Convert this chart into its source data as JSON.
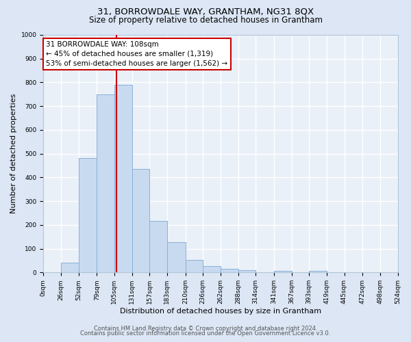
{
  "title": "31, BORROWDALE WAY, GRANTHAM, NG31 8QX",
  "subtitle": "Size of property relative to detached houses in Grantham",
  "xlabel": "Distribution of detached houses by size in Grantham",
  "ylabel": "Number of detached properties",
  "bar_edges": [
    0,
    26,
    52,
    79,
    105,
    131,
    157,
    183,
    210,
    236,
    262,
    288,
    314,
    341,
    367,
    393,
    419,
    445,
    472,
    498,
    524
  ],
  "bar_heights": [
    0,
    42,
    483,
    750,
    790,
    435,
    217,
    127,
    52,
    27,
    15,
    10,
    0,
    7,
    0,
    6,
    0,
    0,
    0,
    0
  ],
  "bar_color": "#c8daf0",
  "bar_edge_color": "#8ab0d8",
  "vline_x": 108,
  "vline_color": "#cc0000",
  "annotation_text": "31 BORROWDALE WAY: 108sqm\n← 45% of detached houses are smaller (1,319)\n53% of semi-detached houses are larger (1,562) →",
  "annotation_box_color": "#ffffff",
  "annotation_box_edge_color": "#cc0000",
  "ylim": [
    0,
    1000
  ],
  "yticks": [
    0,
    100,
    200,
    300,
    400,
    500,
    600,
    700,
    800,
    900,
    1000
  ],
  "tick_labels": [
    "0sqm",
    "26sqm",
    "52sqm",
    "79sqm",
    "105sqm",
    "131sqm",
    "157sqm",
    "183sqm",
    "210sqm",
    "236sqm",
    "262sqm",
    "288sqm",
    "314sqm",
    "341sqm",
    "367sqm",
    "393sqm",
    "419sqm",
    "445sqm",
    "472sqm",
    "498sqm",
    "524sqm"
  ],
  "footer1": "Contains HM Land Registry data © Crown copyright and database right 2024.",
  "footer2": "Contains public sector information licensed under the Open Government Licence v3.0.",
  "bg_color": "#dce6f5",
  "plot_bg_color": "#eaf0f8",
  "grid_color": "#ffffff",
  "title_fontsize": 9.5,
  "subtitle_fontsize": 8.5,
  "label_fontsize": 8,
  "tick_fontsize": 6.5,
  "footer_fontsize": 6,
  "annot_fontsize": 7.5
}
